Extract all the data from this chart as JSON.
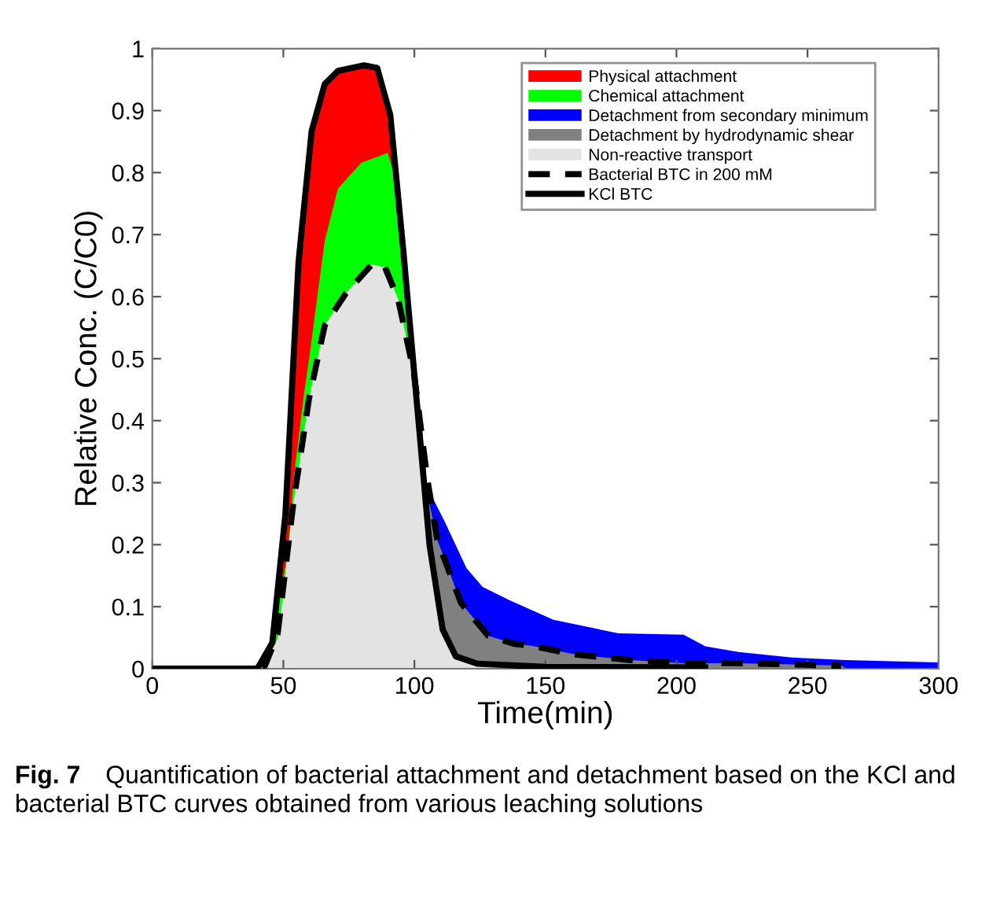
{
  "chart_data": {
    "type": "area",
    "xlabel": "Time(min)",
    "ylabel": "Relative Conc. (C/C0)",
    "xlim": [
      0,
      300
    ],
    "xticks": [
      0,
      50,
      100,
      150,
      200,
      250,
      300
    ],
    "ylim": [
      0,
      1
    ],
    "yticks": [
      0,
      0.1,
      0.2,
      0.3,
      0.4,
      0.5,
      0.6,
      0.7,
      0.8,
      0.9,
      1
    ],
    "grid": false,
    "legend": "top right",
    "series": [
      {
        "name": "Physical attachment",
        "color": "#ff0000",
        "x": [
          40,
          43,
          45.8,
          50.8,
          55.8,
          60.8,
          65.8,
          70.8,
          80.8,
          85.8,
          90.8,
          95.8,
          100.8
        ],
        "values": [
          0,
          0.02,
          0.042,
          0.25,
          0.656,
          0.867,
          0.943,
          0.964,
          0.973,
          0.969,
          0.893,
          0.673,
          0.436
        ]
      },
      {
        "name": "Chemical attachment",
        "color": "#00ff00",
        "x": [
          40,
          44,
          48,
          51.8,
          54,
          57.8,
          60,
          63,
          65.8,
          70.8,
          75,
          79.8,
          85,
          89.8,
          93.5,
          95.8,
          100.8,
          104
        ],
        "values": [
          0,
          0.02,
          0.098,
          0.19,
          0.31,
          0.44,
          0.506,
          0.601,
          0.69,
          0.774,
          0.794,
          0.816,
          0.824,
          0.832,
          0.78,
          0.673,
          0.436,
          0.3
        ]
      },
      {
        "name": "Detachment from secondary minimum",
        "color": "#0000ff",
        "x": [
          104,
          108,
          111.6,
          119.9,
          126,
          136.5,
          153,
          177.8,
          202.7,
          211,
          223.6,
          244,
          264.6,
          300
        ],
        "values": [
          0.3,
          0.267,
          0.237,
          0.162,
          0.132,
          0.11,
          0.079,
          0.057,
          0.055,
          0.036,
          0.027,
          0.018,
          0.014,
          0.01
        ]
      },
      {
        "name": "Detachment by hydrodynamic shear",
        "color": "#808080",
        "x": [
          104,
          108.8,
          117.8,
          128.2,
          138.3,
          144.6,
          161.3,
          182,
          202.7,
          223,
          244,
          262.8,
          265
        ],
        "values": [
          0.3,
          0.207,
          0.106,
          0.053,
          0.04,
          0.037,
          0.023,
          0.014,
          0.009,
          0.009,
          0.007,
          0.005,
          0
        ]
      },
      {
        "name": "Non-reactive transport",
        "color": "#e3e3e3",
        "x": [
          0,
          40,
          43,
          48,
          53.8,
          59.8,
          65.8,
          73.8,
          83.8,
          88.8,
          93.8,
          100,
          104,
          105.8,
          110.8,
          115.8,
          124,
          150,
          211
        ],
        "values": [
          0,
          0,
          0.005,
          0.05,
          0.267,
          0.436,
          0.554,
          0.605,
          0.652,
          0.647,
          0.596,
          0.471,
          0.284,
          0.199,
          0.063,
          0.02,
          0.008,
          0.003,
          0.002
        ]
      },
      {
        "name": "Bacterial BTC in 200 mM",
        "type": "line",
        "color": "#000000",
        "line_style": "dashed",
        "x": [
          0,
          40,
          43,
          47.8,
          53.8,
          59.8,
          65.8,
          73.8,
          83.8,
          88.8,
          93.8,
          99.8,
          104.8,
          108.8,
          117.8,
          128.2,
          138.3,
          144.6,
          161.3,
          182,
          202.7,
          223,
          244,
          262.8
        ],
        "values": [
          0,
          0,
          0.005,
          0.056,
          0.267,
          0.436,
          0.554,
          0.605,
          0.652,
          0.647,
          0.596,
          0.478,
          0.309,
          0.207,
          0.106,
          0.053,
          0.04,
          0.037,
          0.023,
          0.014,
          0.009,
          0.009,
          0.007,
          0.005
        ]
      },
      {
        "name": "KCl BTC",
        "type": "line",
        "color": "#000000",
        "line_style": "solid",
        "x": [
          0,
          40,
          40.8,
          45.8,
          50.8,
          55.8,
          60.8,
          65.8,
          70.8,
          80.8,
          85.8,
          90.8,
          95.8,
          100.8,
          105.8,
          110.8,
          115.8,
          124,
          150,
          211
        ],
        "values": [
          0,
          0,
          0.005,
          0.042,
          0.25,
          0.656,
          0.867,
          0.943,
          0.964,
          0.973,
          0.969,
          0.893,
          0.673,
          0.436,
          0.199,
          0.063,
          0.02,
          0.008,
          0.003,
          0.002
        ]
      }
    ],
    "annotations": [
      "Fig. 7",
      "Quantification of bacterial attachment and detachment based on the KCl and bacterial BTC curves obtained from various leaching solutions"
    ]
  }
}
